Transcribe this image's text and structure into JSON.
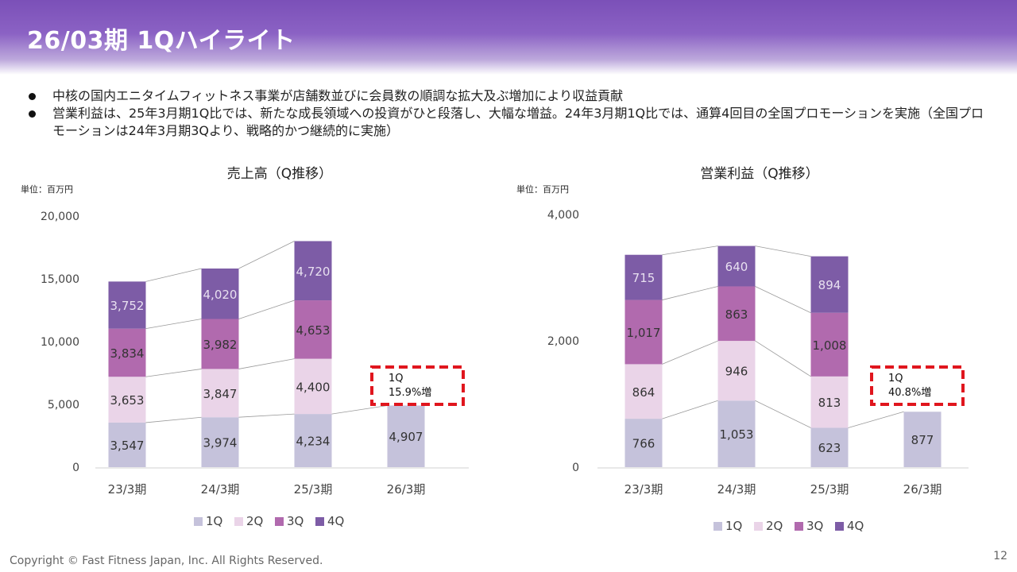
{
  "header": {
    "title": "26/03期 1Qハイライト"
  },
  "bullets": [
    "中核の国内エニタイムフィットネス事業が店舗数並びに会員数の順調な拡大及ぶ増加により収益貢献",
    "営業利益は、25年3月期1Q比では、新たな成長領域への投資がひと段落し、大幅な増益。24年3月期1Q比では、通算4回目の全国プロモーションを実施（全国プロモーションは24年3月期3Qより、戦略的かつ継続的に実施）"
  ],
  "colors": {
    "q1": "#c5c2db",
    "q2": "#ead4e8",
    "q3": "#b16aae",
    "q4": "#7d5ca6",
    "callout": "#e0161e",
    "header": "#7b50b8"
  },
  "chart_data": [
    {
      "type": "bar",
      "stacked": true,
      "title": "売上高（Q推移）",
      "unit_label": "単位：百万円",
      "categories": [
        "23/3期",
        "24/3期",
        "25/3期",
        "26/3期"
      ],
      "series": [
        {
          "name": "1Q",
          "values": [
            3547,
            3974,
            4234,
            4907
          ]
        },
        {
          "name": "2Q",
          "values": [
            3653,
            3847,
            4400,
            null
          ]
        },
        {
          "name": "3Q",
          "values": [
            3834,
            3982,
            4653,
            null
          ]
        },
        {
          "name": "4Q",
          "values": [
            3752,
            4020,
            4720,
            null
          ]
        }
      ],
      "value_labels": [
        [
          "3,547",
          "3,974",
          "4,234",
          "4,907"
        ],
        [
          "3,653",
          "3,847",
          "4,400",
          ""
        ],
        [
          "3,834",
          "3,982",
          "4,653",
          ""
        ],
        [
          "3,752",
          "4,020",
          "4,720",
          ""
        ]
      ],
      "ylim": [
        0,
        20000
      ],
      "yticks": [
        0,
        5000,
        10000,
        15000,
        20000
      ],
      "ytick_labels": [
        "0",
        "5,000",
        "10,000",
        "15,000",
        "20,000"
      ],
      "callout": {
        "line1": "1Q",
        "line2": "15.9%増"
      },
      "legend": "bottom"
    },
    {
      "type": "bar",
      "stacked": true,
      "title": "営業利益（Q推移）",
      "unit_label": "単位：百万円",
      "categories": [
        "23/3期",
        "24/3期",
        "25/3期",
        "26/3期"
      ],
      "series": [
        {
          "name": "1Q",
          "values": [
            766,
            1053,
            623,
            877
          ]
        },
        {
          "name": "2Q",
          "values": [
            864,
            946,
            813,
            null
          ]
        },
        {
          "name": "3Q",
          "values": [
            1017,
            863,
            1008,
            null
          ]
        },
        {
          "name": "4Q",
          "values": [
            715,
            640,
            894,
            null
          ]
        }
      ],
      "value_labels": [
        [
          "766",
          "1,053",
          "623",
          "877"
        ],
        [
          "864",
          "946",
          "813",
          ""
        ],
        [
          "1,017",
          "863",
          "1,008",
          ""
        ],
        [
          "715",
          "640",
          "894",
          ""
        ]
      ],
      "ylim": [
        0,
        4000
      ],
      "yticks": [
        0,
        2000,
        4000
      ],
      "ytick_labels": [
        "0",
        "2,000",
        "4,000"
      ],
      "callout": {
        "line1": "1Q",
        "line2": "40.8%増"
      },
      "legend": "bottom"
    }
  ],
  "footer": {
    "copyright": "Copyright © Fast Fitness Japan, Inc. All Rights Reserved.",
    "page_number": "12"
  }
}
